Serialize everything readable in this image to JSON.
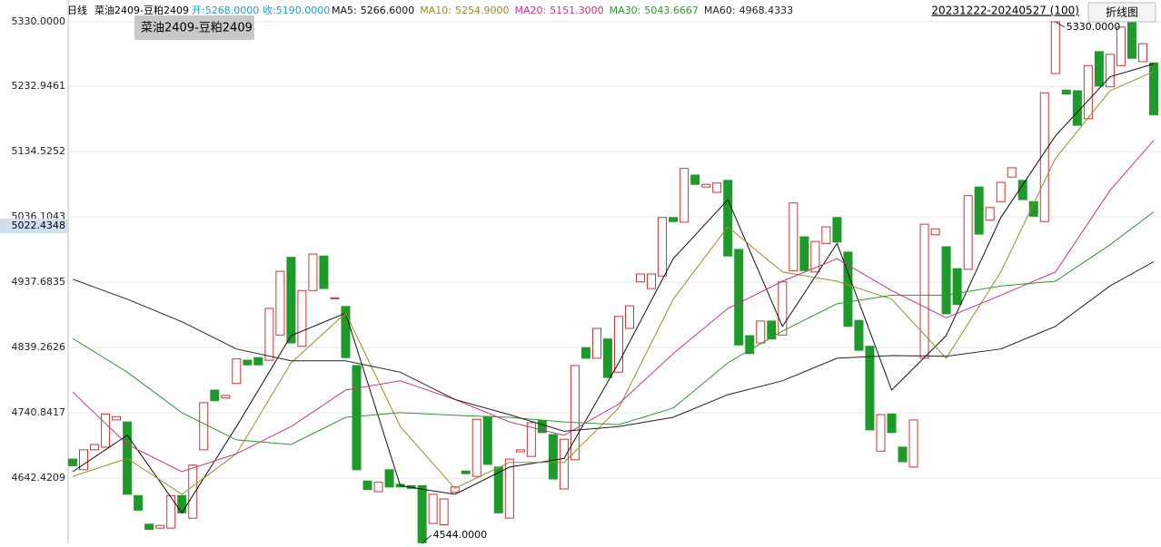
{
  "header": {
    "period": "日线",
    "symbol": "菜油2409-豆粕2409",
    "open": "开:5268.0000",
    "close": "收:5190.0000",
    "range": "20231222-20240527 (100)",
    "button": "折线图",
    "tooltip": "菜油2409-豆粕2409"
  },
  "chart_data": {
    "type": "candlestick",
    "up_color": "#d83030",
    "down_color": "#1e9a2a",
    "open": [
      4671,
      4655,
      4685,
      4689,
      4730,
      4727,
      4616,
      4573,
      4567,
      4567,
      4616,
      4582,
      4685,
      4775,
      4763,
      4785,
      4820,
      4824,
      4820,
      4858,
      4975,
      4841,
      4925,
      4977,
      4913,
      4901,
      4812,
      4638,
      4622,
      4655,
      4633,
      4631,
      4631,
      4574,
      4572,
      4621,
      4653,
      4645,
      4735,
      4659,
      4582,
      4682,
      4675,
      4729,
      4708,
      4626,
      4670,
      4839,
      4823,
      4852,
      4802,
      4868,
      4938,
      4928,
      4947,
      5035,
      5028,
      5099,
      5081,
      5073,
      5091,
      4987,
      4857,
      4846,
      4879,
      4858,
      4955,
      5006,
      4953,
      4996,
      5035,
      4983,
      4880,
      4841,
      4683,
      4739,
      4689,
      4659,
      4823,
      5009,
      4991,
      4958,
      4957,
      5081,
      5031,
      5059,
      5096,
      5091,
      5059,
      5029,
      5252,
      5227,
      5226,
      5184,
      5285,
      5232,
      5264,
      5330,
      5270,
      5268
    ],
    "close": [
      4661,
      4685,
      4693,
      4739,
      4735,
      4618,
      4594,
      4565,
      4571,
      4616,
      4590,
      4662,
      4756,
      4759,
      4767,
      4822,
      4813,
      4813,
      4898,
      4954,
      4846,
      4925,
      4980,
      4928,
      4914,
      4824,
      4655,
      4625,
      4636,
      4629,
      4629,
      4627,
      4545,
      4618,
      4611,
      4629,
      4649,
      4731,
      4663,
      4590,
      4671,
      4685,
      4726,
      4711,
      4641,
      4701,
      4812,
      4823,
      4868,
      4794,
      4886,
      4902,
      4950,
      4950,
      5035,
      5029,
      5109,
      5085,
      5085,
      5087,
      4977,
      4843,
      4830,
      4879,
      4852,
      4938,
      5057,
      4955,
      4999,
      5021,
      4998,
      4871,
      4835,
      4715,
      4738,
      4711,
      4667,
      4730,
      5025,
      5018,
      4890,
      4904,
      5068,
      5010,
      5050,
      5088,
      5110,
      5062,
      5037,
      5223,
      5330,
      5221,
      5174,
      5264,
      5233,
      5281,
      5322,
      5275,
      5297,
      5190
    ],
    "series": [
      {
        "name": "MA5:",
        "value_label": "5266.6000",
        "color": "#111111",
        "x": [
          0,
          5,
          10,
          15,
          20,
          25,
          30,
          35,
          40,
          45,
          50,
          55,
          60,
          65,
          70,
          75,
          80,
          85,
          90,
          95,
          99
        ],
        "values": [
          4652,
          4707,
          4590,
          4720,
          4857,
          4891,
          4631,
          4618,
          4659,
          4672,
          4816,
          4973,
          5062,
          4871,
          4996,
          4775,
          4857,
          5035,
          5158,
          5247,
          5266.6
        ]
      },
      {
        "name": "MA10:",
        "value_label": "5254.9000",
        "color": "#a08a2a",
        "x": [
          0,
          5,
          10,
          15,
          20,
          25,
          30,
          35,
          40,
          45,
          50,
          55,
          60,
          65,
          70,
          75,
          80,
          85,
          90,
          95,
          99
        ],
        "values": [
          4645,
          4672,
          4618,
          4679,
          4816,
          4891,
          4720,
          4627,
          4666,
          4666,
          4748,
          4912,
          5021,
          4953,
          4939,
          4912,
          4823,
          4953,
          5124,
          5226,
          5254.9
        ]
      },
      {
        "name": "MA20:",
        "value_label": "5151.3000",
        "color": "#d0308a",
        "x": [
          0,
          5,
          10,
          15,
          20,
          25,
          30,
          35,
          40,
          45,
          50,
          55,
          60,
          65,
          70,
          75,
          80,
          85,
          90,
          95,
          99
        ],
        "values": [
          4772,
          4693,
          4652,
          4679,
          4720,
          4775,
          4789,
          4761,
          4727,
          4707,
          4754,
          4830,
          4898,
          4939,
          4973,
          4925,
          4884,
          4918,
          4953,
          5076,
          5151.3
        ]
      },
      {
        "name": "MA30:",
        "value_label": "5043.6667",
        "color": "#2a9a2a",
        "x": [
          0,
          5,
          10,
          15,
          20,
          25,
          30,
          35,
          40,
          45,
          50,
          55,
          60,
          65,
          70,
          75,
          80,
          85,
          90,
          95,
          99
        ],
        "values": [
          4853,
          4802,
          4741,
          4700,
          4693,
          4734,
          4741,
          4737,
          4734,
          4727,
          4723,
          4748,
          4816,
          4864,
          4905,
          4918,
          4918,
          4932,
          4939,
          4994,
          5043.6667
        ]
      },
      {
        "name": "MA60:",
        "value_label": "4968.4333",
        "color": "#222222",
        "x": [
          0,
          5,
          10,
          15,
          20,
          25,
          30,
          35,
          40,
          45,
          50,
          55,
          60,
          65,
          70,
          75,
          80,
          85,
          90,
          95,
          99
        ],
        "values": [
          4942,
          4912,
          4878,
          4837,
          4819,
          4819,
          4802,
          4761,
          4738,
          4713,
          4720,
          4734,
          4768,
          4789,
          4823,
          4827,
          4826,
          4837,
          4871,
          4932,
          4968.4333
        ]
      }
    ],
    "annotations": [
      {
        "label": "5330.0000",
        "x": 90,
        "value": 5330
      },
      {
        "label": "4544.0000",
        "x": 32,
        "value": 4544
      }
    ],
    "crosshair_y": 5022.4348,
    "ylim": [
      4544,
      5330
    ],
    "yticks": [
      {
        "value": 5330,
        "label": "5330.0000"
      },
      5232.9461,
      5134.5252,
      5036.1043,
      4937.6835,
      4839.2626,
      4740.8417,
      4642.4209
    ],
    "grid": true
  }
}
